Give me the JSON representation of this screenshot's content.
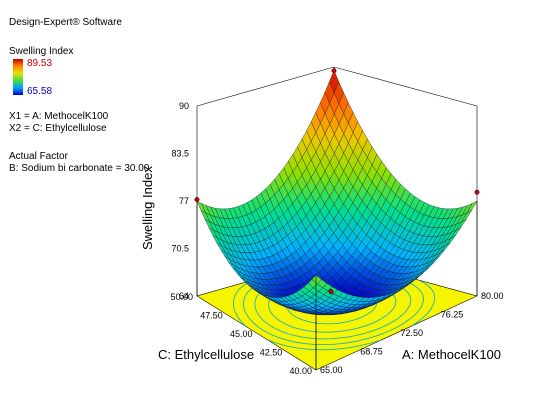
{
  "software": "Design-Expert® Software",
  "legend": {
    "title": "Swelling Index",
    "max_label": "89.53",
    "min_label": "65.58",
    "max_color": "#cc0000",
    "min_color": "#0000cc"
  },
  "factors": {
    "x1": "X1 = A: MethocelK100",
    "x2": "X2 = C: Ethylcellulose",
    "actual_title": "Actual Factor",
    "actual_value": "B: Sodium bi carbonate = 30.00"
  },
  "chart_data": {
    "type": "surface",
    "title": "",
    "zlabel": "Swelling Index",
    "xlabel": "A: MethocelK100",
    "ylabel": "C: Ethylcellulose",
    "x_ticks": [
      "65.00",
      "68.75",
      "72.50",
      "76.25",
      "80.00"
    ],
    "y_ticks": [
      "40.00",
      "42.50",
      "45.00",
      "47.50",
      "50.00"
    ],
    "z_ticks": [
      "64",
      "70.5",
      "77",
      "83.5",
      "90"
    ],
    "xlim": [
      65,
      80
    ],
    "ylim": [
      40,
      50
    ],
    "zlim": [
      64,
      90
    ],
    "z_min": 65.58,
    "z_max": 89.53,
    "corner_values": {
      "x65_y40": 77.0,
      "x80_y40": 77.0,
      "x65_y50": 77.0,
      "x80_y50": 89.53
    },
    "center_value": 65.58,
    "design_points": [
      {
        "x": 65,
        "y": 50,
        "z": 77.2
      },
      {
        "x": 80,
        "y": 50,
        "z": 89.5
      },
      {
        "x": 80,
        "y": 40,
        "z": 78.2
      },
      {
        "x": 72.5,
        "y": 45,
        "z": 65.8
      }
    ],
    "colormap": [
      "#0000cc",
      "#00b3ff",
      "#00e08a",
      "#8fe000",
      "#f0c800",
      "#ff6a00",
      "#cc0000"
    ],
    "floor_color": "#f5f500",
    "contour_color": "#20b0c0"
  }
}
